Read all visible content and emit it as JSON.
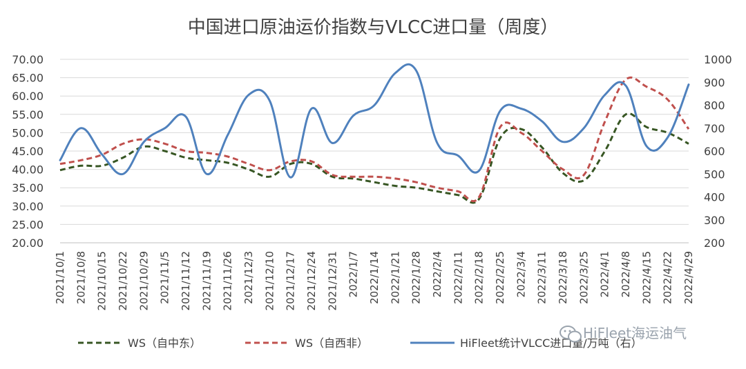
{
  "chart_data": {
    "type": "line",
    "title": "中国进口原油运价指数与VLCC进口量（周度）",
    "categories": [
      "2021/10/1",
      "2021/10/8",
      "2021/10/15",
      "2021/10/22",
      "2021/10/29",
      "2021/11/5",
      "2021/11/12",
      "2021/11/19",
      "2021/11/26",
      "2021/12/3",
      "2021/12/10",
      "2021/12/17",
      "2021/12/24",
      "2021/12/31",
      "2022/1/7",
      "2022/1/14",
      "2022/1/21",
      "2022/1/28",
      "2022/2/4",
      "2022/2/11",
      "2022/2/18",
      "2022/2/25",
      "2022/3/4",
      "2022/3/11",
      "2022/3/18",
      "2022/3/25",
      "2022/4/1",
      "2022/4/8",
      "2022/4/15",
      "2022/4/22",
      "2022/4/29"
    ],
    "left_axis": {
      "min": 20,
      "max": 70,
      "step": 5,
      "ticks": [
        "20.00",
        "25.00",
        "30.00",
        "35.00",
        "40.00",
        "45.00",
        "50.00",
        "55.00",
        "60.00",
        "65.00",
        "70.00"
      ]
    },
    "right_axis": {
      "min": 200,
      "max": 1000,
      "step": 100,
      "ticks": [
        "200",
        "300",
        "400",
        "500",
        "600",
        "700",
        "800",
        "900",
        "1000"
      ]
    },
    "series": [
      {
        "name": "WS（自中东）",
        "axis": "left",
        "color": "#375623",
        "dash": true,
        "values": [
          39.8,
          41.0,
          41.0,
          43.2,
          46.2,
          45.0,
          43.2,
          42.5,
          41.8,
          40.0,
          38.0,
          41.5,
          41.5,
          38.0,
          37.5,
          36.5,
          35.5,
          35.0,
          34.0,
          33.0,
          32.0,
          48.5,
          51.0,
          46.0,
          39.0,
          37.0,
          45.0,
          55.0,
          51.5,
          50.0,
          47.0
        ]
      },
      {
        "name": "WS（自西非）",
        "axis": "left",
        "color": "#c0504d",
        "dash": true,
        "values": [
          41.5,
          42.5,
          44.0,
          47.0,
          48.2,
          47.0,
          45.0,
          44.5,
          43.5,
          41.5,
          39.8,
          42.2,
          42.2,
          38.5,
          38.0,
          38.0,
          37.5,
          36.5,
          35.0,
          34.0,
          32.5,
          51.5,
          50.0,
          45.0,
          40.0,
          38.5,
          53.0,
          64.5,
          62.5,
          59.0,
          51.0
        ]
      },
      {
        "name": "HiFleet统计VLCC进口量/万吨（右）",
        "axis": "right",
        "color": "#4f81bd",
        "dash": false,
        "values": [
          560,
          700,
          585,
          500,
          640,
          700,
          750,
          500,
          670,
          845,
          820,
          485,
          785,
          635,
          755,
          800,
          940,
          950,
          635,
          580,
          515,
          775,
          785,
          730,
          640,
          700,
          845,
          885,
          620,
          660,
          890
        ]
      }
    ],
    "legend": {
      "position": "bottom",
      "entries": [
        "WS（自中东）",
        "WS（自西非）",
        "HiFleet统计VLCC进口量/万吨（右）"
      ]
    },
    "gridlines": true
  },
  "watermark": {
    "text": "HiFleet海运油气",
    "icon": "wechat-icon"
  }
}
